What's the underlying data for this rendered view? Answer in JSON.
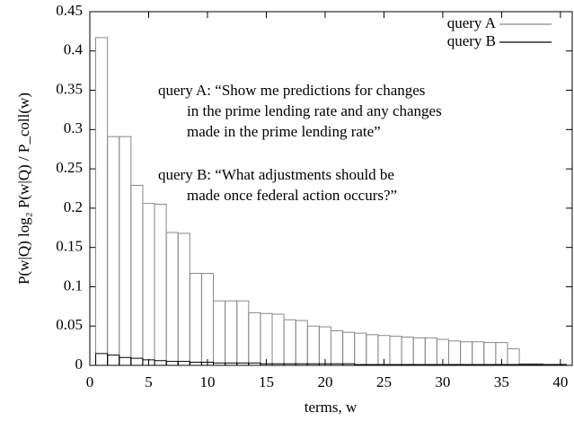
{
  "chart_data": {
    "type": "bar",
    "x_label": "terms, w",
    "y_label": "P(w|Q) log₂ P(w|Q) / P_coll(w)",
    "x": [
      1,
      2,
      3,
      4,
      5,
      6,
      7,
      8,
      9,
      10,
      11,
      12,
      13,
      14,
      15,
      16,
      17,
      18,
      19,
      20,
      21,
      22,
      23,
      24,
      25,
      26,
      27,
      28,
      29,
      30,
      31,
      32,
      33,
      34,
      35,
      36,
      37,
      38,
      39,
      40
    ],
    "series": [
      {
        "name": "query A",
        "color": "#888888",
        "values": [
          0.417,
          0.291,
          0.291,
          0.229,
          0.206,
          0.205,
          0.169,
          0.168,
          0.117,
          0.117,
          0.082,
          0.082,
          0.082,
          0.067,
          0.066,
          0.065,
          0.058,
          0.057,
          0.05,
          0.049,
          0.044,
          0.042,
          0.041,
          0.039,
          0.038,
          0.037,
          0.036,
          0.035,
          0.035,
          0.033,
          0.031,
          0.03,
          0.03,
          0.029,
          0.029,
          0.021,
          0.002,
          0.002,
          0.001,
          0.001
        ]
      },
      {
        "name": "query B",
        "color": "#000000",
        "values": [
          0.015,
          0.013,
          0.01,
          0.009,
          0.007,
          0.006,
          0.005,
          0.005,
          0.004,
          0.004,
          0.003,
          0.003,
          0.003,
          0.003,
          0.002,
          0.002,
          0.002,
          0.002,
          0.002,
          0.002,
          0.002,
          0.002,
          0.001,
          0.001,
          0.001,
          0.001,
          0.001,
          0.001,
          0.001,
          0.001,
          0.001,
          0.001,
          0.001,
          0.001,
          0.001,
          0.001,
          0.001,
          0.001,
          0.001,
          0.001
        ]
      }
    ],
    "annotations": [
      [
        "query A: “Show me predictions for changes",
        "in the prime lending rate and any changes",
        "made in the prime lending rate”"
      ],
      [
        "query B: “What adjustments should be",
        "made once federal action occurs?”"
      ]
    ],
    "xlim": [
      0,
      41
    ],
    "ylim": [
      0,
      0.45
    ],
    "xticks": [
      0,
      5,
      10,
      15,
      20,
      25,
      30,
      35,
      40
    ],
    "yticks": [
      0,
      0.05,
      0.1,
      0.15,
      0.2,
      0.25,
      0.3,
      0.35,
      0.4,
      0.45
    ],
    "legend": "upper right",
    "grid": false
  }
}
